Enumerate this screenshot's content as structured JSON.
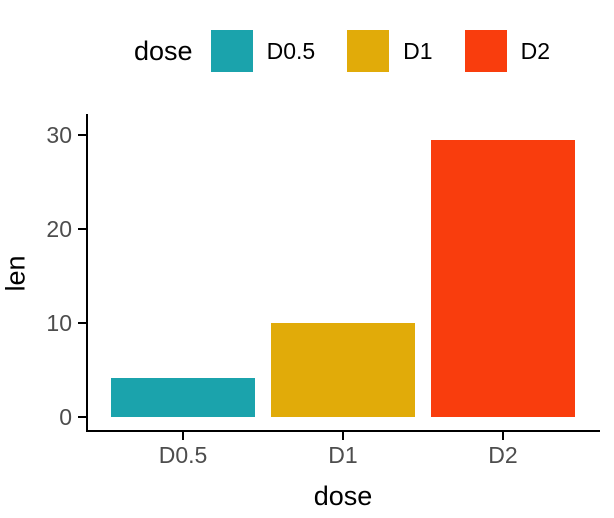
{
  "chart_data": {
    "type": "bar",
    "categories": [
      "D0.5",
      "D1",
      "D2"
    ],
    "values": [
      4.2,
      10,
      29.5
    ],
    "bar_colors": [
      "#1BA3AC",
      "#E1AB09",
      "#F93D0D"
    ],
    "xlabel": "dose",
    "ylabel": "len",
    "yticks": [
      0,
      10,
      20,
      30
    ],
    "ylim": [
      -1.5,
      31
    ],
    "grid": false,
    "legend": {
      "title": "dose",
      "position": "top",
      "entries": [
        {
          "label": "D0.5",
          "color": "#1BA3AC"
        },
        {
          "label": "D1",
          "color": "#E1AB09"
        },
        {
          "label": "D2",
          "color": "#F93D0D"
        }
      ]
    }
  },
  "style_colors": {
    "axis_line": "#000000",
    "tick_label": "#4D4D4D",
    "axis_title": "#000000",
    "background": "#FFFFFF"
  }
}
